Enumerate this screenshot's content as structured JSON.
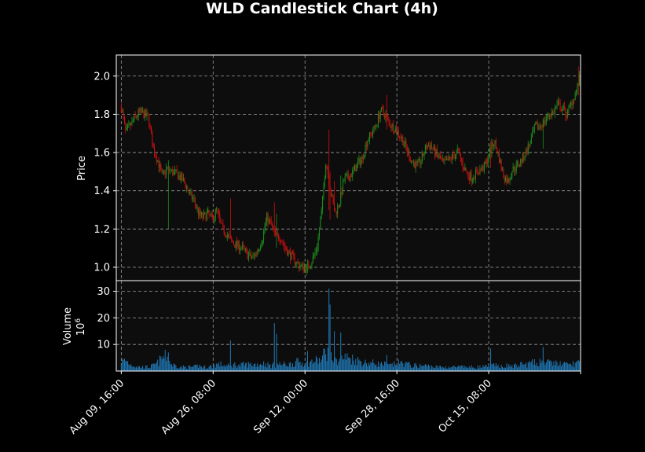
{
  "chart_data": {
    "type": "candlestick",
    "title": "WLD Candlestick Chart (4h)",
    "interval": "4h",
    "price_panel": {
      "ylabel": "Price",
      "ylim": [
        0.93,
        2.11
      ],
      "yticks": [
        1.0,
        1.2,
        1.4,
        1.6,
        1.8,
        2.0
      ],
      "ytick_labels": [
        "1.0",
        "1.2",
        "1.4",
        "1.6",
        "1.8",
        "2.0"
      ],
      "series_name": "price"
    },
    "volume_panel": {
      "ylabel": "Volume",
      "scale_label": "10",
      "scale_exp": "6",
      "ylim": [
        0,
        34
      ],
      "yticks": [
        10,
        20,
        30
      ],
      "ytick_labels": [
        "10",
        "20",
        "30"
      ]
    },
    "x_axis": {
      "xlim": [
        -1.1,
        101
      ],
      "ticks": [
        0,
        20.2,
        40.4,
        60.6,
        80.8,
        101
      ],
      "tick_labels": [
        "Aug 09, 16:00",
        "Aug 26, 08:00",
        "Sep 12, 00:00",
        "Sep 28, 16:00",
        "Oct 15, 08:00",
        ""
      ]
    },
    "grid": true,
    "colors": {
      "up": "#1e8c1e",
      "down": "#d01010",
      "volume": "#1f77b4",
      "background": "#0d0d0d",
      "figure": "#000000",
      "grid": "#9a9a9a"
    },
    "price_path": [
      [
        0,
        1.84
      ],
      [
        1,
        1.7
      ],
      [
        2,
        1.74
      ],
      [
        3,
        1.78
      ],
      [
        4,
        1.81
      ],
      [
        5,
        1.8
      ],
      [
        6,
        1.78
      ],
      [
        7,
        1.62
      ],
      [
        8,
        1.56
      ],
      [
        9,
        1.47
      ],
      [
        10,
        1.52
      ],
      [
        11,
        1.5
      ],
      [
        12,
        1.49
      ],
      [
        13,
        1.47
      ],
      [
        14,
        1.44
      ],
      [
        15,
        1.38
      ],
      [
        16,
        1.35
      ],
      [
        17,
        1.28
      ],
      [
        18,
        1.26
      ],
      [
        19,
        1.28
      ],
      [
        20,
        1.25
      ],
      [
        21,
        1.3
      ],
      [
        22,
        1.21
      ],
      [
        23,
        1.18
      ],
      [
        24,
        1.14
      ],
      [
        25,
        1.12
      ],
      [
        26,
        1.11
      ],
      [
        27,
        1.09
      ],
      [
        28,
        1.06
      ],
      [
        29,
        1.05
      ],
      [
        30,
        1.09
      ],
      [
        31,
        1.15
      ],
      [
        32,
        1.26
      ],
      [
        33,
        1.22
      ],
      [
        34,
        1.16
      ],
      [
        35,
        1.16
      ],
      [
        36,
        1.1
      ],
      [
        37,
        1.07
      ],
      [
        38,
        1.04
      ],
      [
        39,
        1.01
      ],
      [
        40,
        1.0
      ],
      [
        41,
        1.0
      ],
      [
        42,
        1.04
      ],
      [
        43,
        1.1
      ],
      [
        44,
        1.28
      ],
      [
        45,
        1.56
      ],
      [
        46,
        1.4
      ],
      [
        47,
        1.28
      ],
      [
        48,
        1.34
      ],
      [
        49,
        1.46
      ],
      [
        50,
        1.47
      ],
      [
        51,
        1.5
      ],
      [
        52,
        1.54
      ],
      [
        53,
        1.57
      ],
      [
        54,
        1.66
      ],
      [
        55,
        1.7
      ],
      [
        56,
        1.74
      ],
      [
        57,
        1.82
      ],
      [
        58,
        1.8
      ],
      [
        59,
        1.75
      ],
      [
        60,
        1.73
      ],
      [
        61,
        1.7
      ],
      [
        62,
        1.66
      ],
      [
        63,
        1.6
      ],
      [
        64,
        1.55
      ],
      [
        65,
        1.53
      ],
      [
        66,
        1.56
      ],
      [
        67,
        1.63
      ],
      [
        68,
        1.64
      ],
      [
        69,
        1.6
      ],
      [
        70,
        1.57
      ],
      [
        71,
        1.54
      ],
      [
        72,
        1.56
      ],
      [
        73,
        1.58
      ],
      [
        74,
        1.61
      ],
      [
        75,
        1.54
      ],
      [
        76,
        1.49
      ],
      [
        77,
        1.47
      ],
      [
        78,
        1.49
      ],
      [
        79,
        1.51
      ],
      [
        80,
        1.53
      ],
      [
        81,
        1.6
      ],
      [
        82,
        1.66
      ],
      [
        83,
        1.58
      ],
      [
        84,
        1.48
      ],
      [
        85,
        1.45
      ],
      [
        86,
        1.51
      ],
      [
        87,
        1.53
      ],
      [
        88,
        1.56
      ],
      [
        89,
        1.6
      ],
      [
        90,
        1.66
      ],
      [
        91,
        1.73
      ],
      [
        92,
        1.74
      ],
      [
        93,
        1.76
      ],
      [
        94,
        1.8
      ],
      [
        95,
        1.81
      ],
      [
        96,
        1.85
      ],
      [
        97,
        1.83
      ],
      [
        98,
        1.8
      ],
      [
        99,
        1.86
      ],
      [
        100,
        1.92
      ],
      [
        101,
        2.0
      ]
    ],
    "volume_path": [
      [
        0,
        3.5
      ],
      [
        1,
        4.0
      ],
      [
        2,
        2.5
      ],
      [
        3,
        2.0
      ],
      [
        4,
        1.5
      ],
      [
        5,
        1.5
      ],
      [
        6,
        1.5
      ],
      [
        7,
        2.0
      ],
      [
        8,
        3.0
      ],
      [
        9,
        5.0
      ],
      [
        10,
        5.5
      ],
      [
        11,
        2.5
      ],
      [
        12,
        2.0
      ],
      [
        13,
        1.5
      ],
      [
        14,
        1.5
      ],
      [
        15,
        1.5
      ],
      [
        16,
        1.5
      ],
      [
        17,
        2.0
      ],
      [
        18,
        1.5
      ],
      [
        19,
        1.5
      ],
      [
        20,
        1.8
      ],
      [
        21,
        2.5
      ],
      [
        22,
        2.5
      ],
      [
        23,
        2.0
      ],
      [
        24,
        2.0
      ],
      [
        25,
        2.5
      ],
      [
        26,
        2.0
      ],
      [
        27,
        2.5
      ],
      [
        28,
        2.5
      ],
      [
        29,
        2.5
      ],
      [
        30,
        2.5
      ],
      [
        31,
        3.0
      ],
      [
        32,
        2.5
      ],
      [
        33,
        2.0
      ],
      [
        34,
        2.5
      ],
      [
        35,
        2.5
      ],
      [
        36,
        2.5
      ],
      [
        37,
        2.5
      ],
      [
        38,
        3.0
      ],
      [
        39,
        3.5
      ],
      [
        40,
        3.0
      ],
      [
        41,
        3.0
      ],
      [
        42,
        3.5
      ],
      [
        43,
        4.0
      ],
      [
        44,
        4.0
      ],
      [
        45,
        8.0
      ],
      [
        46,
        5.0
      ],
      [
        47,
        3.5
      ],
      [
        48,
        4.5
      ],
      [
        49,
        5.0
      ],
      [
        50,
        5.0
      ],
      [
        51,
        4.5
      ],
      [
        52,
        4.0
      ],
      [
        53,
        3.5
      ],
      [
        54,
        3.0
      ],
      [
        55,
        3.0
      ],
      [
        56,
        3.0
      ],
      [
        57,
        2.5
      ],
      [
        58,
        2.5
      ],
      [
        59,
        2.0
      ],
      [
        60,
        2.5
      ],
      [
        61,
        3.0
      ],
      [
        62,
        3.0
      ],
      [
        63,
        2.5
      ],
      [
        64,
        2.0
      ],
      [
        65,
        2.0
      ],
      [
        66,
        2.0
      ],
      [
        67,
        2.0
      ],
      [
        68,
        1.8
      ],
      [
        69,
        1.5
      ],
      [
        70,
        1.5
      ],
      [
        71,
        1.5
      ],
      [
        72,
        1.5
      ],
      [
        73,
        1.5
      ],
      [
        74,
        1.5
      ],
      [
        75,
        1.5
      ],
      [
        76,
        1.5
      ],
      [
        77,
        1.5
      ],
      [
        78,
        1.5
      ],
      [
        79,
        1.5
      ],
      [
        80,
        1.5
      ],
      [
        81,
        1.8
      ],
      [
        82,
        2.0
      ],
      [
        83,
        2.0
      ],
      [
        84,
        2.0
      ],
      [
        85,
        2.0
      ],
      [
        86,
        2.0
      ],
      [
        87,
        2.0
      ],
      [
        88,
        2.5
      ],
      [
        89,
        2.5
      ],
      [
        90,
        3.0
      ],
      [
        91,
        3.0
      ],
      [
        92,
        3.5
      ],
      [
        93,
        3.5
      ],
      [
        94,
        3.0
      ],
      [
        95,
        3.0
      ],
      [
        96,
        3.0
      ],
      [
        97,
        2.5
      ],
      [
        98,
        2.5
      ],
      [
        99,
        2.5
      ],
      [
        100,
        3.0
      ],
      [
        101,
        3.5
      ]
    ],
    "events": [
      {
        "x": 10.4,
        "low": 1.2,
        "high": 1.56,
        "volume": 7.0
      },
      {
        "x": 24.0,
        "low": 1.15,
        "high": 1.36,
        "volume": 11.5
      },
      {
        "x": 33.7,
        "low": 1.16,
        "high": 1.34,
        "volume": 18.0
      },
      {
        "x": 34.2,
        "low": 1.1,
        "high": 1.28,
        "volume": 14.0
      },
      {
        "x": 41.0,
        "low": 0.97,
        "high": 1.04,
        "volume": 7.5
      },
      {
        "x": 45.6,
        "low": 1.3,
        "high": 1.72,
        "volume": 31.0
      },
      {
        "x": 46.0,
        "low": 1.25,
        "high": 1.5,
        "volume": 25.0
      },
      {
        "x": 46.8,
        "low": 1.3,
        "high": 1.45,
        "volume": 15.0
      },
      {
        "x": 48.3,
        "low": 1.34,
        "high": 1.48,
        "volume": 14.5
      },
      {
        "x": 58.5,
        "low": 1.72,
        "high": 1.9,
        "volume": 6.0
      },
      {
        "x": 81.2,
        "low": 1.52,
        "high": 1.66,
        "volume": 8.5
      },
      {
        "x": 92.8,
        "low": 1.62,
        "high": 1.78,
        "volume": 9.0
      },
      {
        "x": 100.6,
        "low": 1.9,
        "high": 2.05,
        "volume": 4.0
      }
    ],
    "candle_count": 430,
    "noise_seed": 7
  }
}
